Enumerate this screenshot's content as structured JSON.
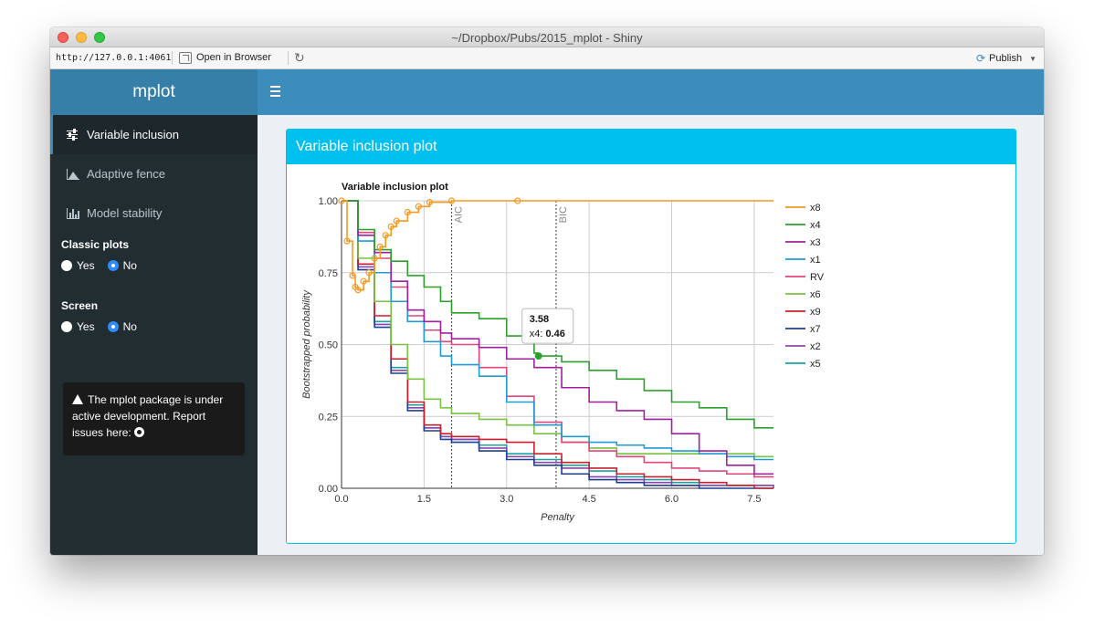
{
  "window": {
    "title": "~/Dropbox/Pubs/2015_mplot - Shiny"
  },
  "urlbar": {
    "url": "http://127.0.0.1:4061",
    "open_label": "Open in Browser",
    "publish_label": "Publish"
  },
  "header": {
    "app_title": "mplot"
  },
  "sidebar": {
    "items": [
      {
        "label": "Variable inclusion",
        "icon": "sliders-icon",
        "active": true
      },
      {
        "label": "Adaptive fence",
        "icon": "area-chart-icon",
        "active": false
      },
      {
        "label": "Model stability",
        "icon": "bar-chart-icon",
        "active": false
      }
    ],
    "classic_plots": {
      "label": "Classic plots",
      "options": [
        "Yes",
        "No"
      ],
      "selected": "No"
    },
    "screen": {
      "label": "Screen",
      "options": [
        "Yes",
        "No"
      ],
      "selected": "No"
    },
    "notice": "The mplot package is under active development. Report issues here:"
  },
  "main": {
    "box_title": "Variable inclusion plot"
  },
  "chart_data": {
    "type": "line",
    "title": "Variable inclusion plot",
    "xlabel": "Penalty",
    "ylabel": "Bootstrapped probability",
    "xlim": [
      0,
      7.85
    ],
    "ylim": [
      0,
      1
    ],
    "xticks": [
      "0.0",
      "1.5",
      "3.0",
      "4.5",
      "6.0",
      "7.5"
    ],
    "yticks": [
      "0.00",
      "0.25",
      "0.50",
      "0.75",
      "1.00"
    ],
    "grid": true,
    "legend_position": "right",
    "reference_lines": [
      {
        "label": "AIC",
        "x": 2.0
      },
      {
        "label": "BIC",
        "x": 3.9
      }
    ],
    "tooltip": {
      "x": "3.58",
      "series": "x4",
      "value": "0.46"
    },
    "series": [
      {
        "name": "x8",
        "color": "#f59a23",
        "markers": true,
        "points": [
          [
            0,
            1.0
          ],
          [
            0.1,
            0.86
          ],
          [
            0.2,
            0.74
          ],
          [
            0.25,
            0.7
          ],
          [
            0.3,
            0.69
          ],
          [
            0.4,
            0.72
          ],
          [
            0.5,
            0.75
          ],
          [
            0.6,
            0.8
          ],
          [
            0.7,
            0.84
          ],
          [
            0.8,
            0.88
          ],
          [
            0.9,
            0.91
          ],
          [
            1.0,
            0.93
          ],
          [
            1.2,
            0.96
          ],
          [
            1.4,
            0.98
          ],
          [
            1.6,
            0.995
          ],
          [
            2.0,
            1.0
          ],
          [
            3.2,
            1.0
          ],
          [
            7.85,
            1.0
          ]
        ]
      },
      {
        "name": "x4",
        "color": "#2ca02c",
        "points": [
          [
            0,
            1.0
          ],
          [
            0.3,
            0.9
          ],
          [
            0.6,
            0.83
          ],
          [
            0.9,
            0.79
          ],
          [
            1.2,
            0.74
          ],
          [
            1.5,
            0.7
          ],
          [
            1.8,
            0.65
          ],
          [
            2.0,
            0.61
          ],
          [
            2.5,
            0.59
          ],
          [
            3.0,
            0.53
          ],
          [
            3.5,
            0.47
          ],
          [
            3.58,
            0.46
          ],
          [
            4.0,
            0.44
          ],
          [
            4.5,
            0.41
          ],
          [
            5.0,
            0.38
          ],
          [
            5.5,
            0.34
          ],
          [
            6.0,
            0.3
          ],
          [
            6.5,
            0.28
          ],
          [
            7.0,
            0.24
          ],
          [
            7.5,
            0.21
          ],
          [
            7.85,
            0.21
          ]
        ]
      },
      {
        "name": "x3",
        "color": "#a020a0",
        "points": [
          [
            0,
            1.0
          ],
          [
            0.3,
            0.88
          ],
          [
            0.6,
            0.82
          ],
          [
            0.9,
            0.72
          ],
          [
            1.2,
            0.62
          ],
          [
            1.5,
            0.58
          ],
          [
            1.8,
            0.54
          ],
          [
            2.0,
            0.52
          ],
          [
            2.5,
            0.49
          ],
          [
            3.0,
            0.45
          ],
          [
            3.5,
            0.42
          ],
          [
            4.0,
            0.35
          ],
          [
            4.5,
            0.3
          ],
          [
            5.0,
            0.27
          ],
          [
            5.5,
            0.24
          ],
          [
            6.0,
            0.19
          ],
          [
            6.5,
            0.13
          ],
          [
            7.0,
            0.08
          ],
          [
            7.5,
            0.05
          ],
          [
            7.85,
            0.05
          ]
        ]
      },
      {
        "name": "x1",
        "color": "#1f9bd7",
        "points": [
          [
            0,
            1.0
          ],
          [
            0.3,
            0.86
          ],
          [
            0.6,
            0.75
          ],
          [
            0.9,
            0.65
          ],
          [
            1.2,
            0.58
          ],
          [
            1.5,
            0.51
          ],
          [
            1.8,
            0.46
          ],
          [
            2.0,
            0.43
          ],
          [
            2.5,
            0.39
          ],
          [
            3.0,
            0.3
          ],
          [
            3.5,
            0.22
          ],
          [
            4.0,
            0.18
          ],
          [
            4.5,
            0.16
          ],
          [
            5.0,
            0.15
          ],
          [
            5.5,
            0.14
          ],
          [
            6.0,
            0.13
          ],
          [
            6.5,
            0.12
          ],
          [
            7.0,
            0.11
          ],
          [
            7.5,
            0.1
          ],
          [
            7.85,
            0.1
          ]
        ]
      },
      {
        "name": "RV",
        "color": "#e0457b",
        "points": [
          [
            0,
            1.0
          ],
          [
            0.3,
            0.89
          ],
          [
            0.6,
            0.8
          ],
          [
            0.9,
            0.7
          ],
          [
            1.2,
            0.6
          ],
          [
            1.5,
            0.55
          ],
          [
            1.8,
            0.51
          ],
          [
            2.0,
            0.5
          ],
          [
            2.5,
            0.42
          ],
          [
            3.0,
            0.32
          ],
          [
            3.5,
            0.23
          ],
          [
            4.0,
            0.16
          ],
          [
            4.5,
            0.13
          ],
          [
            5.0,
            0.11
          ],
          [
            5.5,
            0.09
          ],
          [
            6.0,
            0.07
          ],
          [
            6.5,
            0.06
          ],
          [
            7.0,
            0.05
          ],
          [
            7.5,
            0.04
          ],
          [
            7.85,
            0.04
          ]
        ]
      },
      {
        "name": "x6",
        "color": "#7ac143",
        "points": [
          [
            0,
            1.0
          ],
          [
            0.3,
            0.8
          ],
          [
            0.6,
            0.65
          ],
          [
            0.9,
            0.5
          ],
          [
            1.2,
            0.38
          ],
          [
            1.5,
            0.31
          ],
          [
            1.8,
            0.28
          ],
          [
            2.0,
            0.26
          ],
          [
            2.5,
            0.24
          ],
          [
            3.0,
            0.22
          ],
          [
            3.5,
            0.19
          ],
          [
            4.0,
            0.16
          ],
          [
            4.5,
            0.14
          ],
          [
            5.0,
            0.12
          ],
          [
            5.5,
            0.12
          ],
          [
            6.0,
            0.12
          ],
          [
            6.5,
            0.12
          ],
          [
            7.0,
            0.12
          ],
          [
            7.5,
            0.11
          ],
          [
            7.85,
            0.11
          ]
        ]
      },
      {
        "name": "x9",
        "color": "#c8202f",
        "points": [
          [
            0,
            1.0
          ],
          [
            0.3,
            0.78
          ],
          [
            0.6,
            0.6
          ],
          [
            0.9,
            0.45
          ],
          [
            1.2,
            0.3
          ],
          [
            1.5,
            0.22
          ],
          [
            1.8,
            0.19
          ],
          [
            2.0,
            0.18
          ],
          [
            2.5,
            0.17
          ],
          [
            3.0,
            0.16
          ],
          [
            3.5,
            0.12
          ],
          [
            4.0,
            0.09
          ],
          [
            4.5,
            0.07
          ],
          [
            5.0,
            0.05
          ],
          [
            5.5,
            0.04
          ],
          [
            6.0,
            0.03
          ],
          [
            6.5,
            0.02
          ],
          [
            7.0,
            0.01
          ],
          [
            7.5,
            0.0
          ],
          [
            7.85,
            0.0
          ]
        ]
      },
      {
        "name": "x7",
        "color": "#1f3f8f",
        "points": [
          [
            0,
            1.0
          ],
          [
            0.3,
            0.76
          ],
          [
            0.6,
            0.56
          ],
          [
            0.9,
            0.4
          ],
          [
            1.2,
            0.27
          ],
          [
            1.5,
            0.2
          ],
          [
            1.8,
            0.17
          ],
          [
            2.0,
            0.16
          ],
          [
            2.5,
            0.13
          ],
          [
            3.0,
            0.1
          ],
          [
            3.5,
            0.08
          ],
          [
            4.0,
            0.05
          ],
          [
            4.5,
            0.03
          ],
          [
            5.0,
            0.02
          ],
          [
            5.5,
            0.01
          ],
          [
            6.0,
            0.01
          ],
          [
            6.5,
            0.0
          ],
          [
            7.85,
            0.0
          ]
        ]
      },
      {
        "name": "x2",
        "color": "#8e44ad",
        "points": [
          [
            0,
            1.0
          ],
          [
            0.3,
            0.77
          ],
          [
            0.6,
            0.57
          ],
          [
            0.9,
            0.41
          ],
          [
            1.2,
            0.28
          ],
          [
            1.5,
            0.21
          ],
          [
            1.8,
            0.18
          ],
          [
            2.0,
            0.17
          ],
          [
            2.5,
            0.14
          ],
          [
            3.0,
            0.11
          ],
          [
            3.5,
            0.09
          ],
          [
            4.0,
            0.07
          ],
          [
            4.5,
            0.04
          ],
          [
            5.0,
            0.03
          ],
          [
            5.5,
            0.02
          ],
          [
            6.0,
            0.01
          ],
          [
            6.5,
            0.01
          ],
          [
            7.85,
            0.0
          ]
        ]
      },
      {
        "name": "x5",
        "color": "#1aa3a0",
        "points": [
          [
            0,
            1.0
          ],
          [
            0.3,
            0.78
          ],
          [
            0.6,
            0.58
          ],
          [
            0.9,
            0.42
          ],
          [
            1.2,
            0.29
          ],
          [
            1.5,
            0.21
          ],
          [
            1.8,
            0.18
          ],
          [
            2.0,
            0.17
          ],
          [
            2.5,
            0.15
          ],
          [
            3.0,
            0.12
          ],
          [
            3.5,
            0.1
          ],
          [
            4.0,
            0.08
          ],
          [
            4.5,
            0.06
          ],
          [
            5.0,
            0.04
          ],
          [
            5.5,
            0.03
          ],
          [
            6.0,
            0.02
          ],
          [
            6.5,
            0.01
          ],
          [
            7.85,
            0.01
          ]
        ]
      }
    ]
  }
}
